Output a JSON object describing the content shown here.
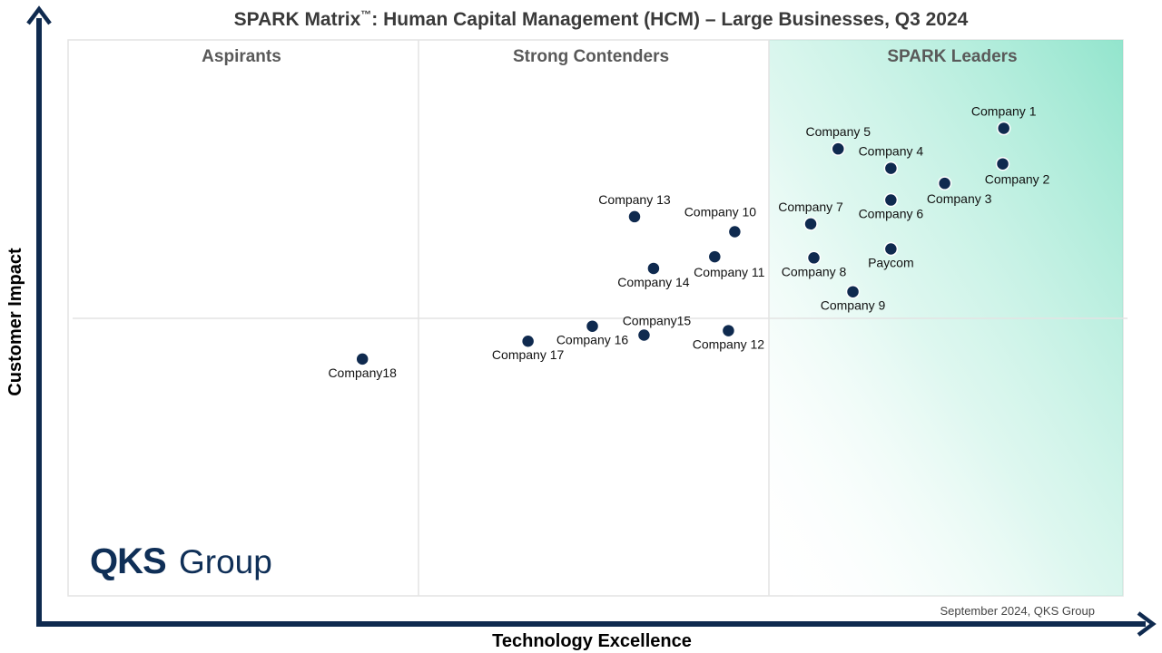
{
  "chart_data": {
    "type": "scatter",
    "title": "SPARK Matrix",
    "title_mark": "™",
    "title_rest": ": Human Capital Management (HCM) – Large Businesses, Q3 2024",
    "xlabel": "Technology Excellence",
    "ylabel": "Customer Impact",
    "xlim": [
      0,
      100
    ],
    "ylim": [
      0,
      100
    ],
    "grid": false,
    "quadrant_dividers": {
      "x": [
        33.3,
        66.7
      ],
      "y": 50
    },
    "quadrants": [
      "Aspirants",
      "Strong Contenders",
      "SPARK Leaders"
    ],
    "footnote": "September 2024, QKS Group",
    "logo": {
      "primary": "QKS",
      "secondary": "Group"
    },
    "colors": {
      "marker": "#0f2a4f",
      "axis": "#0f2a4f",
      "leaders_fill": "#7fe0c4"
    },
    "points": [
      {
        "name": "Company 1",
        "x": 88.7,
        "y": 84.1,
        "label_pos": "above"
      },
      {
        "name": "Company 2",
        "x": 88.6,
        "y": 77.7,
        "label_pos": "below-right"
      },
      {
        "name": "Company 3",
        "x": 83.1,
        "y": 74.2,
        "label_pos": "below-right"
      },
      {
        "name": "Company 4",
        "x": 78.0,
        "y": 76.9,
        "label_pos": "above"
      },
      {
        "name": "Company 5",
        "x": 73.0,
        "y": 80.4,
        "label_pos": "above"
      },
      {
        "name": "Company 6",
        "x": 78.0,
        "y": 71.2,
        "label_pos": "below"
      },
      {
        "name": "Company 7",
        "x": 70.4,
        "y": 66.9,
        "label_pos": "above"
      },
      {
        "name": "Company 8",
        "x": 70.7,
        "y": 60.8,
        "label_pos": "below"
      },
      {
        "name": "Company 9",
        "x": 74.4,
        "y": 54.7,
        "label_pos": "below"
      },
      {
        "name": "Paycom",
        "x": 78.0,
        "y": 62.4,
        "label_pos": "below"
      },
      {
        "name": "Company 10",
        "x": 63.2,
        "y": 65.5,
        "label_pos": "above-left"
      },
      {
        "name": "Company 11",
        "x": 61.3,
        "y": 61.0,
        "label_pos": "below-right"
      },
      {
        "name": "Company 12",
        "x": 62.6,
        "y": 47.7,
        "label_pos": "below"
      },
      {
        "name": "Company 13",
        "x": 53.7,
        "y": 68.2,
        "label_pos": "above"
      },
      {
        "name": "Company 14",
        "x": 55.5,
        "y": 58.9,
        "label_pos": "below"
      },
      {
        "name": "Company15",
        "x": 54.6,
        "y": 46.9,
        "label_pos": "above-right"
      },
      {
        "name": "Company 16",
        "x": 49.7,
        "y": 48.5,
        "label_pos": "below"
      },
      {
        "name": "Company 17",
        "x": 43.6,
        "y": 45.8,
        "label_pos": "below"
      },
      {
        "name": "Company18",
        "x": 27.9,
        "y": 42.6,
        "label_pos": "below"
      }
    ]
  }
}
